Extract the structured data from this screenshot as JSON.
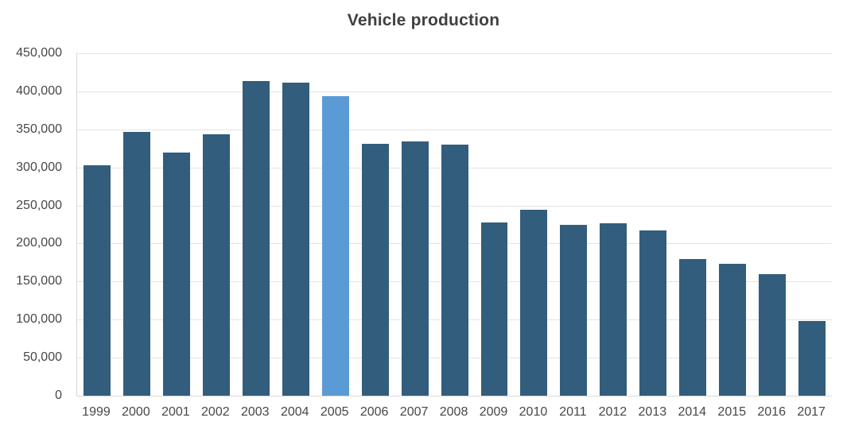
{
  "chart": {
    "colors": {
      "bar": "#325d7d",
      "highlight": "#5b9bd5",
      "grid": "#e4e4e4",
      "axis_line": "#d6d6d6",
      "title_text": "#404040",
      "tick_text": "#474747"
    }
  },
  "chart_data": {
    "type": "bar",
    "title": "Vehicle production",
    "xlabel": "",
    "ylabel": "",
    "categories": [
      "1999",
      "2000",
      "2001",
      "2002",
      "2003",
      "2004",
      "2005",
      "2006",
      "2007",
      "2008",
      "2009",
      "2010",
      "2011",
      "2012",
      "2013",
      "2014",
      "2015",
      "2016",
      "2017"
    ],
    "values": [
      303000,
      347000,
      320000,
      344000,
      413000,
      411000,
      394000,
      331000,
      334000,
      330000,
      228000,
      244000,
      224000,
      227000,
      217000,
      180000,
      173000,
      160000,
      98000
    ],
    "highlighted_category": "2005",
    "ylim": [
      0,
      450000
    ],
    "ytick_interval": 50000,
    "ytick_labels": [
      "0",
      "50,000",
      "100,000",
      "150,000",
      "200,000",
      "250,000",
      "300,000",
      "350,000",
      "400,000",
      "450,000"
    ],
    "grid": true,
    "legend": "none"
  }
}
